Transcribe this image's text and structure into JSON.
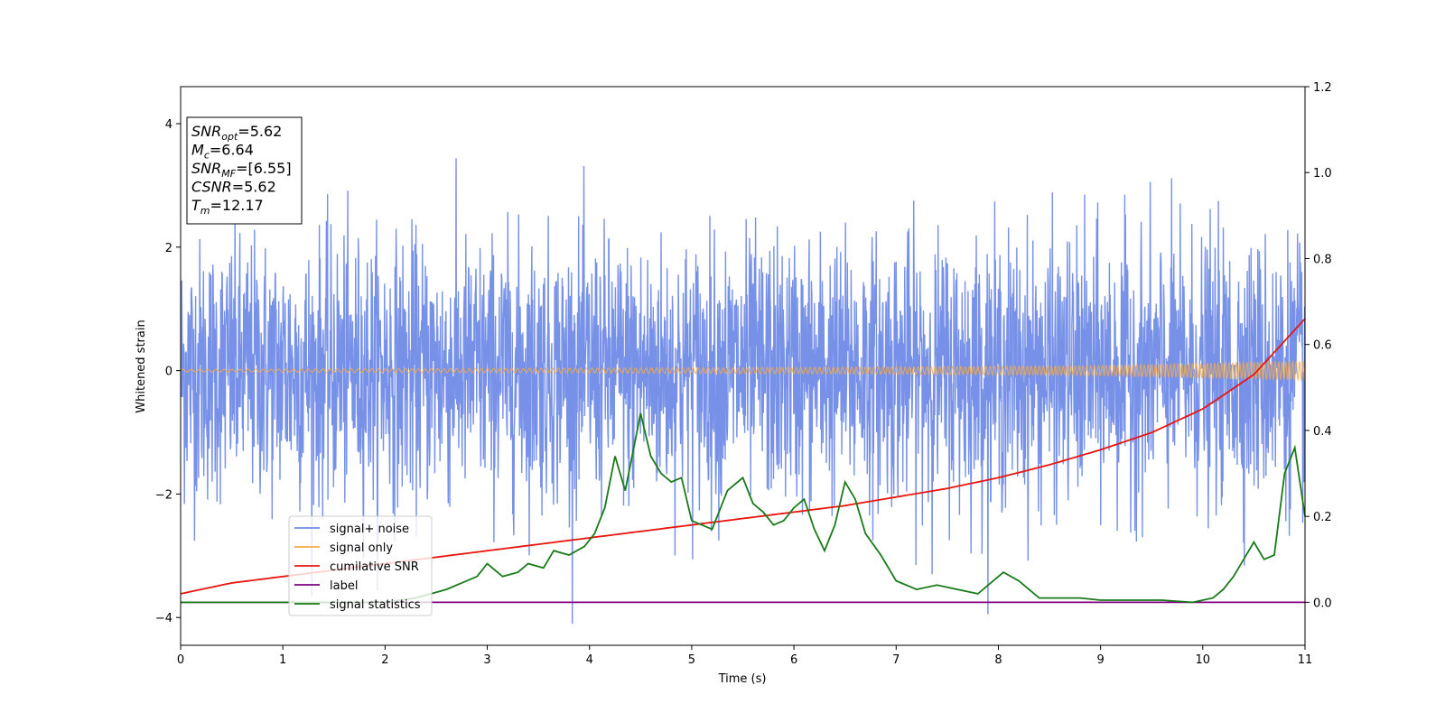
{
  "chart_data": {
    "type": "line",
    "title": "",
    "xlabel": "Time (s)",
    "ylabel": "Whitened strain",
    "xlim": [
      0,
      11
    ],
    "ylim": [
      -4.45,
      4.6
    ],
    "y2lim": [
      -0.1,
      1.2
    ],
    "grid": false,
    "legend_position": "lower-left",
    "x_ticks": [
      "0",
      "1",
      "2",
      "3",
      "4",
      "5",
      "6",
      "7",
      "8",
      "9",
      "10",
      "11"
    ],
    "y_ticks": [
      "−4",
      "−2",
      "0",
      "2",
      "4"
    ],
    "y2_ticks": [
      "0.0",
      "0.2",
      "0.4",
      "0.6",
      "0.8",
      "1.0",
      "1.2"
    ],
    "annotation_box": [
      {
        "sym": "SNR",
        "sub": "opt",
        "value": "=5.62"
      },
      {
        "sym": "M",
        "sub": "c",
        "value": "=6.64"
      },
      {
        "sym": "SNR",
        "sub": "MF",
        "value": "=[6.55]"
      },
      {
        "sym": "CSNR",
        "sub": "",
        "value": "=5.62"
      },
      {
        "sym": "T",
        "sub": "m",
        "value": "=12.17"
      }
    ],
    "series": [
      {
        "name": "signal+ noise",
        "axis": "left",
        "color": "#6f8be6",
        "description_values": "noise band approx ±1.5 with spikes to ±4.2"
      },
      {
        "name": "signal only",
        "axis": "left",
        "color": "#f5a94a",
        "amplitude": [
          [
            0,
            0.02
          ],
          [
            6,
            0.05
          ],
          [
            9,
            0.08
          ],
          [
            11,
            0.15
          ]
        ]
      },
      {
        "name": "cumilative SNR",
        "axis": "right",
        "color": "#e8150f",
        "x": [
          0,
          0.5,
          1,
          1.5,
          2,
          2.5,
          3,
          3.5,
          4,
          4.5,
          5,
          5.5,
          6,
          6.5,
          7,
          7.5,
          8,
          8.5,
          9,
          9.5,
          10,
          10.5,
          11
        ],
        "y": [
          0.02,
          0.045,
          0.06,
          0.075,
          0.09,
          0.105,
          0.12,
          0.135,
          0.15,
          0.165,
          0.18,
          0.195,
          0.21,
          0.225,
          0.245,
          0.265,
          0.29,
          0.32,
          0.355,
          0.395,
          0.45,
          0.53,
          0.66
        ]
      },
      {
        "name": "label",
        "axis": "right",
        "color": "#800080",
        "x": [
          0,
          11
        ],
        "y": [
          0.0,
          0.0
        ]
      },
      {
        "name": "signal statistics",
        "axis": "right",
        "color": "#1a7a1a",
        "x": [
          0,
          0.5,
          1,
          1.5,
          2,
          2.3,
          2.6,
          2.9,
          3.0,
          3.15,
          3.3,
          3.4,
          3.55,
          3.65,
          3.8,
          3.95,
          4.05,
          4.15,
          4.25,
          4.35,
          4.45,
          4.5,
          4.6,
          4.7,
          4.8,
          4.9,
          5.0,
          5.1,
          5.2,
          5.35,
          5.5,
          5.6,
          5.7,
          5.8,
          5.9,
          6.0,
          6.1,
          6.2,
          6.3,
          6.4,
          6.5,
          6.6,
          6.7,
          6.85,
          7.0,
          7.2,
          7.4,
          7.6,
          7.8,
          7.95,
          8.05,
          8.2,
          8.4,
          8.6,
          8.8,
          9.0,
          9.3,
          9.6,
          9.9,
          10.1,
          10.2,
          10.3,
          10.4,
          10.5,
          10.6,
          10.7,
          10.8,
          10.9,
          11.0
        ],
        "y": [
          0.0,
          0.0,
          0.0,
          0.0,
          0.0,
          0.01,
          0.03,
          0.06,
          0.09,
          0.06,
          0.07,
          0.09,
          0.08,
          0.12,
          0.11,
          0.13,
          0.16,
          0.22,
          0.34,
          0.26,
          0.38,
          0.44,
          0.34,
          0.3,
          0.28,
          0.29,
          0.19,
          0.18,
          0.17,
          0.26,
          0.29,
          0.23,
          0.21,
          0.18,
          0.19,
          0.22,
          0.24,
          0.17,
          0.12,
          0.18,
          0.28,
          0.24,
          0.16,
          0.11,
          0.05,
          0.03,
          0.04,
          0.03,
          0.02,
          0.05,
          0.07,
          0.05,
          0.01,
          0.01,
          0.01,
          0.005,
          0.005,
          0.005,
          0.0,
          0.01,
          0.03,
          0.06,
          0.1,
          0.14,
          0.1,
          0.11,
          0.3,
          0.36,
          0.2
        ]
      }
    ]
  }
}
